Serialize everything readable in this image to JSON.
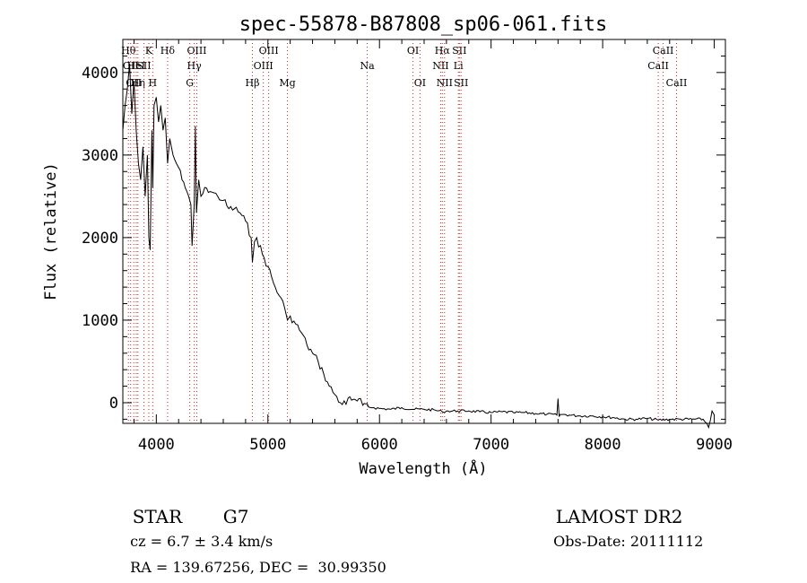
{
  "chart_data": {
    "type": "line",
    "title": "spec-55878-B87808_sp06-061.fits",
    "xlabel": "Wavelength (Å)",
    "ylabel": "Flux (relative)",
    "xlim": [
      3700,
      9100
    ],
    "ylim": [
      -250,
      4400
    ],
    "xticks": [
      4000,
      5000,
      6000,
      7000,
      8000,
      9000
    ],
    "yticks": [
      0,
      1000,
      2000,
      3000,
      4000
    ],
    "grid": false,
    "line_color": "#000000",
    "marker_color": "#d32020",
    "series": [
      {
        "x": [
          3700,
          3720,
          3740,
          3760,
          3780,
          3800,
          3820,
          3840,
          3860,
          3880,
          3900,
          3920,
          3933,
          3945,
          3960,
          3968,
          3980,
          4000,
          4020,
          4040,
          4060,
          4080,
          4101,
          4120,
          4150,
          4180,
          4200,
          4230,
          4260,
          4290,
          4310,
          4320,
          4340,
          4350,
          4360,
          4380,
          4400,
          4450,
          4500,
          4550,
          4600,
          4650,
          4700,
          4750,
          4800,
          4850,
          4861,
          4880,
          4900,
          4950,
          5000,
          5050,
          5100,
          5150,
          5175,
          5200,
          5250,
          5300,
          5350,
          5400,
          5450,
          5500,
          5550,
          5600,
          5650,
          5700,
          5720,
          5750,
          5780,
          5800,
          5830,
          5850,
          5890,
          5900,
          5950,
          6000,
          6100,
          6200,
          6300,
          6400,
          6500,
          6563,
          6600,
          6700,
          6800,
          6900,
          7000,
          7100,
          7200,
          7300,
          7400,
          7500,
          7590,
          7600,
          7610,
          7620,
          7700,
          7800,
          7900,
          8000,
          8100,
          8200,
          8300,
          8400,
          8500,
          8600,
          8700,
          8800,
          8900,
          8950,
          8980,
          9000
        ],
        "y": [
          3300,
          3600,
          3800,
          4100,
          3500,
          3900,
          3300,
          2900,
          2700,
          3100,
          2500,
          3000,
          2000,
          1850,
          3300,
          2600,
          3600,
          3700,
          3400,
          3600,
          3300,
          3450,
          2900,
          3200,
          3000,
          2900,
          2850,
          2700,
          2600,
          2500,
          2400,
          1900,
          2400,
          3350,
          2300,
          2700,
          2500,
          2600,
          2550,
          2500,
          2450,
          2350,
          2350,
          2300,
          2200,
          2000,
          1700,
          1950,
          2000,
          1800,
          1650,
          1450,
          1300,
          1150,
          1000,
          1050,
          950,
          850,
          700,
          600,
          500,
          350,
          200,
          100,
          0,
          -20,
          60,
          30,
          40,
          20,
          50,
          -30,
          -10,
          -50,
          -60,
          -70,
          -80,
          -60,
          -80,
          -80,
          -90,
          -110,
          -100,
          -100,
          -100,
          -110,
          -120,
          -110,
          -120,
          -120,
          -130,
          -140,
          -150,
          50,
          -170,
          -140,
          -150,
          -160,
          -160,
          -170,
          -180,
          -200,
          -200,
          -190,
          -210,
          -200,
          -200,
          -200,
          -200,
          -300,
          -100,
          -150
        ]
      }
    ],
    "line_markers": [
      {
        "wave": 3750,
        "labels": [
          "Hθ"
        ],
        "row": 0
      },
      {
        "wave": 3770,
        "labels": [
          "OII"
        ],
        "row": 1
      },
      {
        "wave": 3798,
        "labels": [
          "OII"
        ],
        "row": 2
      },
      {
        "wave": 3820,
        "labels": [
          "HeI"
        ],
        "row": 1
      },
      {
        "wave": 3835,
        "labels": [
          "Hη"
        ],
        "row": 2
      },
      {
        "wave": 3889,
        "labels": [
          "SII"
        ],
        "row": 1
      },
      {
        "wave": 3933,
        "labels": [
          "K"
        ],
        "row": 0
      },
      {
        "wave": 3968,
        "labels": [
          "H"
        ],
        "row": 2
      },
      {
        "wave": 4101,
        "labels": [
          "Hδ"
        ],
        "row": 0
      },
      {
        "wave": 4300,
        "labels": [
          "G"
        ],
        "row": 2
      },
      {
        "wave": 4340,
        "labels": [
          "Hγ"
        ],
        "row": 1
      },
      {
        "wave": 4363,
        "labels": [
          "OIII"
        ],
        "row": 0
      },
      {
        "wave": 4861,
        "labels": [
          "Hβ"
        ],
        "row": 2
      },
      {
        "wave": 4959,
        "labels": [
          "OIII"
        ],
        "row": 1
      },
      {
        "wave": 5007,
        "labels": [
          "OIII"
        ],
        "row": 0
      },
      {
        "wave": 5175,
        "labels": [
          "Mg"
        ],
        "row": 2
      },
      {
        "wave": 5890,
        "labels": [
          "Na"
        ],
        "row": 1
      },
      {
        "wave": 6300,
        "labels": [
          "OI"
        ],
        "row": 0
      },
      {
        "wave": 6363,
        "labels": [
          "OI"
        ],
        "row": 2
      },
      {
        "wave": 6548,
        "labels": [
          "NII"
        ],
        "row": 1
      },
      {
        "wave": 6563,
        "labels": [
          "Hα"
        ],
        "row": 0
      },
      {
        "wave": 6583,
        "labels": [
          "NII"
        ],
        "row": 2
      },
      {
        "wave": 6707,
        "labels": [
          "Li"
        ],
        "row": 1
      },
      {
        "wave": 6716,
        "labels": [
          "SII"
        ],
        "row": 0
      },
      {
        "wave": 6731,
        "labels": [
          "SII"
        ],
        "row": 2
      },
      {
        "wave": 8498,
        "labels": [
          "CaII"
        ],
        "row": 1
      },
      {
        "wave": 8542,
        "labels": [
          "CaII"
        ],
        "row": 0
      },
      {
        "wave": 8662,
        "labels": [
          "CaII"
        ],
        "row": 2
      }
    ]
  },
  "info": {
    "object_class": "STAR",
    "subclass": "G7",
    "survey": "LAMOST DR2",
    "redshift_text": "cz = 6.7 ± 3.4 km/s",
    "obs_date": "Obs-Date: 20111112",
    "coords": "RA = 139.67256, DEC =  30.99350"
  }
}
